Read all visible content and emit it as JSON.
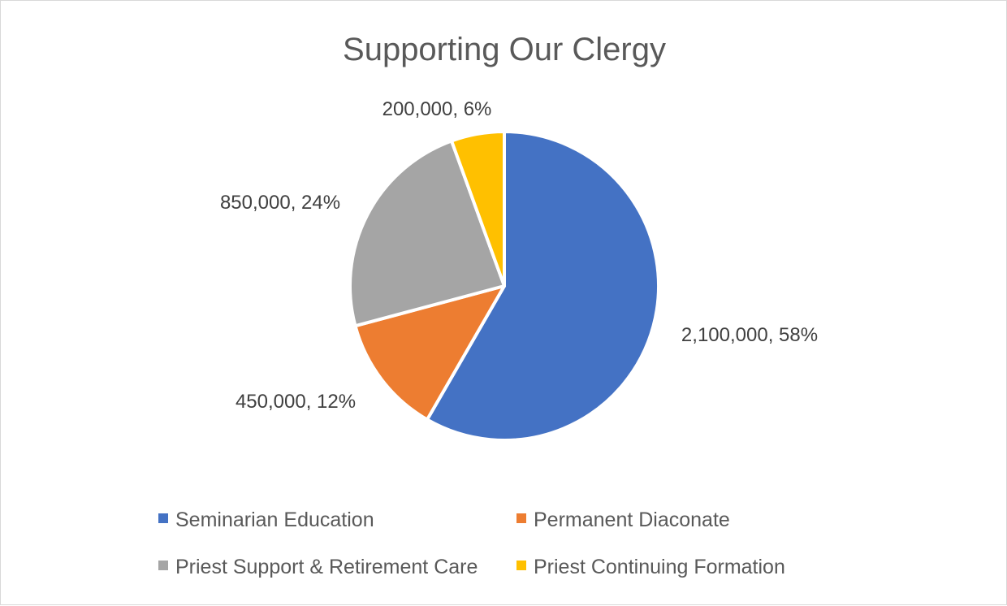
{
  "chart_data": {
    "type": "pie",
    "title": "Supporting Our Clergy",
    "categories": [
      "Seminarian Education",
      "Permanent Diaconate",
      "Priest Support & Retirement Care",
      "Priest Continuing Formation"
    ],
    "values": [
      2100000,
      450000,
      850000,
      200000
    ],
    "data_labels": [
      "2,100,000, 58%",
      "450,000, 12%",
      "850,000, 24%",
      "200,000, 6%"
    ],
    "colors": [
      "#4472C4",
      "#ED7D31",
      "#A5A5A5",
      "#FFC000"
    ],
    "legend_position": "bottom"
  }
}
